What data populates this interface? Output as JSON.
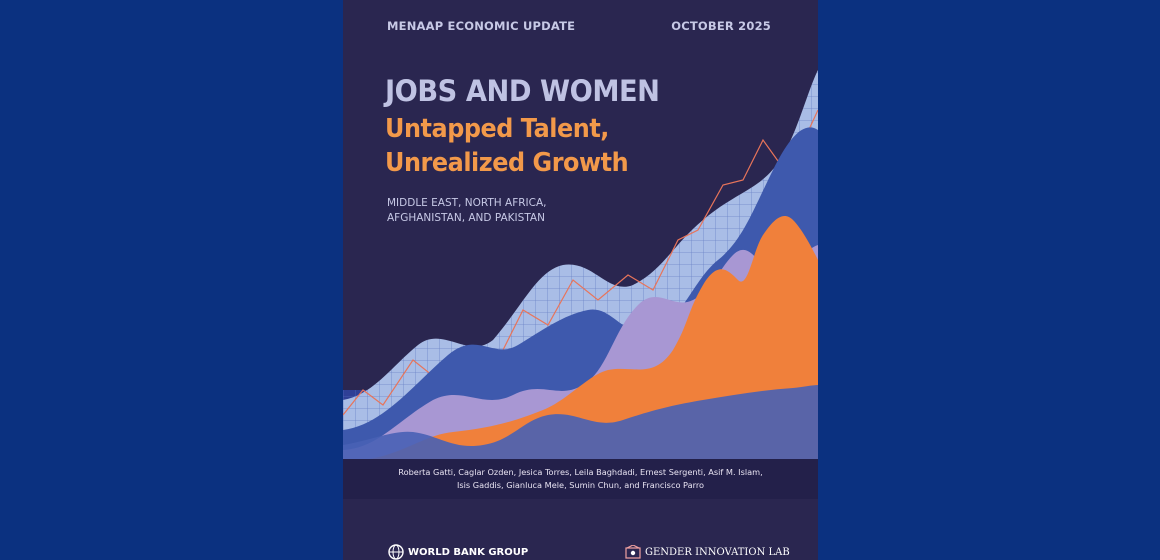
{
  "cover": {
    "series": "MENAAP ECONOMIC UPDATE",
    "date": "OCTOBER 2025",
    "title": "JOBS AND WOMEN",
    "subtitle_line1": "Untapped Talent,",
    "subtitle_line2": "Unrealized Growth",
    "region_line1": "MIDDLE EAST, NORTH AFRICA,",
    "region_line2": "AFGHANISTAN, AND PAKISTAN",
    "authors_line1": "Roberta Gatti, Caglar Ozden, Jesica Torres, Leila Baghdadi, Ernest Sergenti, Asif M. Islam,",
    "authors_line2": "Isis Gaddis, Gianluca Mele, Sumin Chun, and Francisco Parro",
    "logo_left": "WORLD BANK GROUP",
    "logo_right": "GENDER INNOVATION LAB"
  },
  "colors": {
    "page_background": "#0b3180",
    "cover_background": "#2a2650",
    "title": "#bfc2e3",
    "subtitle": "#f2994a",
    "wave_grid": "#a9bde6",
    "wave_blue": "#3e59ad",
    "wave_lavender": "#a897d3",
    "wave_orange": "#f0803b"
  },
  "icons": {
    "logo_left_icon": "globe-icon",
    "logo_right_icon": "gender-lab-emblem-icon"
  }
}
